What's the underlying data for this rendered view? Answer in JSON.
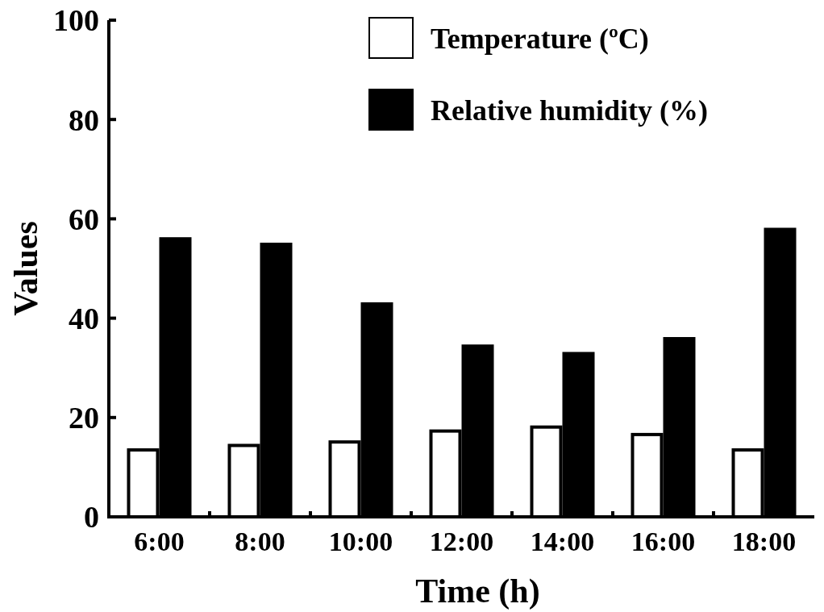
{
  "chart_data": {
    "type": "bar",
    "xlabel": "Time (h)",
    "ylabel": "Values",
    "categories": [
      "6:00",
      "8:00",
      "10:00",
      "12:00",
      "14:00",
      "16:00",
      "18:00"
    ],
    "series": [
      {
        "name": "Temperature (ºC)",
        "color": "#ffffff",
        "values": [
          13.8,
          14.7,
          15.4,
          17.6,
          18.4,
          16.9,
          13.8
        ]
      },
      {
        "name": "Relative humidity (%)",
        "color": "#000000",
        "values": [
          56.3,
          55.2,
          43.2,
          34.7,
          33.2,
          36.2,
          58.2
        ]
      }
    ],
    "ylim": [
      0,
      100
    ],
    "yticks": [
      0,
      20,
      40,
      60,
      80,
      100
    ],
    "grid": false,
    "legend": "top right"
  }
}
